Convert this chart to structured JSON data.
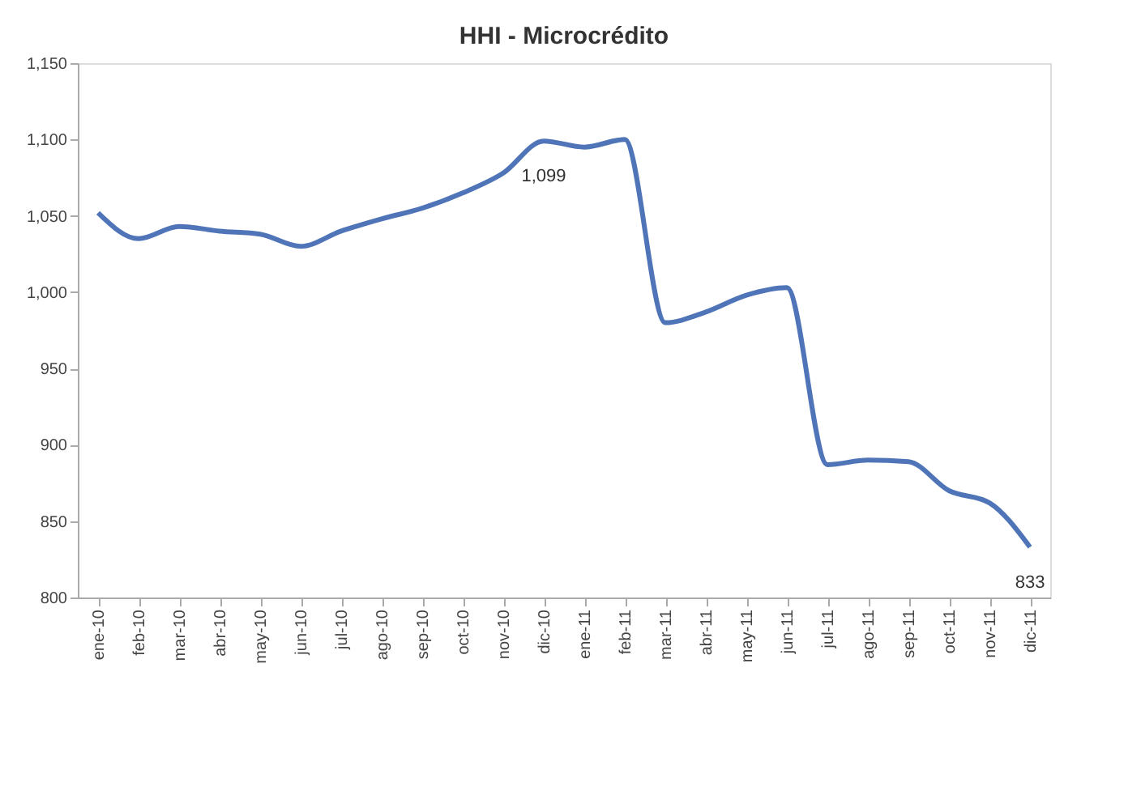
{
  "chart_data": {
    "type": "line",
    "title": "HHI - Microcrédito",
    "categories": [
      "ene-10",
      "feb-10",
      "mar-10",
      "abr-10",
      "may-10",
      "jun-10",
      "jul-10",
      "ago-10",
      "sep-10",
      "oct-10",
      "nov-10",
      "dic-10",
      "ene-11",
      "feb-11",
      "mar-11",
      "abr-11",
      "may-11",
      "jun-11",
      "jul-11",
      "ago-11",
      "sep-11",
      "oct-11",
      "nov-11",
      "dic-11"
    ],
    "series": [
      {
        "color": "#4f75b8",
        "values": [
          1052,
          1035,
          1043,
          1040,
          1038,
          1030,
          1040,
          1048,
          1055,
          1065,
          1078,
          1099,
          1095,
          1100,
          980,
          987,
          998,
          1003,
          887,
          890,
          889,
          870,
          862,
          833
        ],
        "value_labels": [
          null,
          null,
          null,
          null,
          null,
          null,
          null,
          null,
          null,
          null,
          null,
          "1,099",
          null,
          null,
          null,
          null,
          null,
          null,
          null,
          null,
          null,
          null,
          null,
          "833"
        ]
      }
    ],
    "ylim": [
      800,
      1150
    ],
    "yticks": [
      {
        "value": 800,
        "label": "800"
      },
      {
        "value": 850,
        "label": "850"
      },
      {
        "value": 900,
        "label": "900"
      },
      {
        "value": 950,
        "label": "950"
      },
      {
        "value": 1000,
        "label": "1,000"
      },
      {
        "value": 1050,
        "label": "1,050"
      },
      {
        "value": 1100,
        "label": "1,100"
      },
      {
        "value": 1150,
        "label": "1,150"
      }
    ],
    "grid": false,
    "marker": "none",
    "line_style": "solid"
  }
}
